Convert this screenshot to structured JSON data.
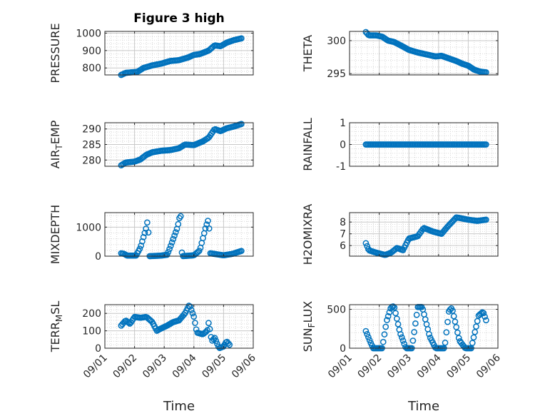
{
  "figure": {
    "title": "Figure 3 high",
    "xlabel": "Time",
    "marker_color": "#0072bd",
    "axis_color": "#262626",
    "grid_color": "#d7d7d7",
    "xticks": [
      "09/01",
      "09/02",
      "09/03",
      "09/04",
      "09/05",
      "09/06"
    ]
  },
  "chart_data": [
    {
      "type": "scatter",
      "ylabel": "PRESSURE",
      "ylabel_sub": "",
      "ylabel_tail": "",
      "xlim": [
        0,
        5
      ],
      "ylim": [
        760,
        1010
      ],
      "yticks": [
        800,
        900,
        1000
      ],
      "keyframes": [
        [
          0.55,
          760
        ],
        [
          0.7,
          772
        ],
        [
          0.9,
          775
        ],
        [
          1.1,
          778
        ],
        [
          1.3,
          800
        ],
        [
          1.6,
          815
        ],
        [
          1.9,
          825
        ],
        [
          2.2,
          840
        ],
        [
          2.5,
          845
        ],
        [
          2.8,
          860
        ],
        [
          3.0,
          875
        ],
        [
          3.2,
          880
        ],
        [
          3.5,
          900
        ],
        [
          3.7,
          930
        ],
        [
          3.9,
          925
        ],
        [
          4.1,
          945
        ],
        [
          4.35,
          960
        ],
        [
          4.6,
          970
        ]
      ]
    },
    {
      "type": "scatter",
      "ylabel": "THETA",
      "ylabel_sub": "",
      "ylabel_tail": "",
      "xlim": [
        0,
        5
      ],
      "ylim": [
        294.8,
        301.4
      ],
      "yticks": [
        295,
        300
      ],
      "keyframes": [
        [
          0.55,
          301.3
        ],
        [
          0.65,
          300.8
        ],
        [
          0.9,
          300.8
        ],
        [
          1.1,
          300.6
        ],
        [
          1.3,
          300.0
        ],
        [
          1.5,
          299.8
        ],
        [
          1.8,
          299.1
        ],
        [
          2.0,
          298.6
        ],
        [
          2.3,
          298.2
        ],
        [
          2.6,
          297.9
        ],
        [
          2.9,
          297.6
        ],
        [
          3.1,
          297.7
        ],
        [
          3.35,
          297.3
        ],
        [
          3.6,
          296.9
        ],
        [
          3.8,
          296.5
        ],
        [
          4.0,
          296.2
        ],
        [
          4.2,
          295.6
        ],
        [
          4.4,
          295.3
        ],
        [
          4.6,
          295.2
        ]
      ]
    },
    {
      "type": "scatter",
      "ylabel": "AIR",
      "ylabel_sub": "T",
      "ylabel_tail": "EMP",
      "xlim": [
        0,
        5
      ],
      "ylim": [
        278,
        292
      ],
      "yticks": [
        280,
        285,
        290
      ],
      "keyframes": [
        [
          0.55,
          278.3
        ],
        [
          0.7,
          279.2
        ],
        [
          1.0,
          279.5
        ],
        [
          1.2,
          280.2
        ],
        [
          1.4,
          281.7
        ],
        [
          1.6,
          282.5
        ],
        [
          1.9,
          283.0
        ],
        [
          2.2,
          283.2
        ],
        [
          2.5,
          283.8
        ],
        [
          2.7,
          285.0
        ],
        [
          3.0,
          284.8
        ],
        [
          3.3,
          286.0
        ],
        [
          3.5,
          287.2
        ],
        [
          3.7,
          290.0
        ],
        [
          3.9,
          289.3
        ],
        [
          4.1,
          290.2
        ],
        [
          4.35,
          290.8
        ],
        [
          4.6,
          291.6
        ]
      ]
    },
    {
      "type": "scatter",
      "ylabel": "RAINFALL",
      "ylabel_sub": "",
      "ylabel_tail": "",
      "xlim": [
        0,
        5
      ],
      "ylim": [
        -1,
        1
      ],
      "yticks": [
        -1,
        0,
        1
      ],
      "keyframes": [
        [
          0.55,
          0
        ],
        [
          4.6,
          0
        ]
      ]
    },
    {
      "type": "scatter",
      "ylabel": "MIXDEPTH",
      "ylabel_sub": "",
      "ylabel_tail": "",
      "xlim": [
        0,
        5
      ],
      "ylim": [
        0,
        1500
      ],
      "yticks": [
        0,
        1000
      ],
      "keyframes": [
        [
          0.55,
          100
        ],
        [
          0.65,
          80
        ],
        [
          0.75,
          20
        ],
        [
          1.05,
          20
        ],
        [
          1.2,
          300
        ],
        [
          1.4,
          1000
        ],
        [
          1.45,
          1300
        ],
        [
          1.5,
          0
        ],
        [
          1.9,
          20
        ],
        [
          2.1,
          50
        ],
        [
          2.2,
          300
        ],
        [
          2.45,
          1000
        ],
        [
          2.55,
          1500
        ],
        [
          2.6,
          0
        ],
        [
          3.0,
          30
        ],
        [
          3.2,
          200
        ],
        [
          3.4,
          1000
        ],
        [
          3.5,
          1300
        ],
        [
          3.55,
          100
        ],
        [
          4.0,
          30
        ],
        [
          4.3,
          80
        ],
        [
          4.6,
          180
        ]
      ]
    },
    {
      "type": "scatter",
      "ylabel": "H2OMIXRA",
      "ylabel_sub": "",
      "ylabel_tail": "",
      "xlim": [
        0,
        5
      ],
      "ylim": [
        5.1,
        8.8
      ],
      "yticks": [
        6,
        7,
        8
      ],
      "keyframes": [
        [
          0.55,
          6.2
        ],
        [
          0.65,
          5.6
        ],
        [
          0.9,
          5.4
        ],
        [
          1.2,
          5.2
        ],
        [
          1.4,
          5.4
        ],
        [
          1.6,
          5.8
        ],
        [
          1.8,
          5.6
        ],
        [
          2.0,
          6.6
        ],
        [
          2.3,
          6.8
        ],
        [
          2.5,
          7.5
        ],
        [
          2.8,
          7.2
        ],
        [
          3.1,
          7.0
        ],
        [
          3.3,
          7.6
        ],
        [
          3.6,
          8.4
        ],
        [
          3.8,
          8.3
        ],
        [
          4.0,
          8.2
        ],
        [
          4.3,
          8.1
        ],
        [
          4.6,
          8.2
        ]
      ]
    },
    {
      "type": "scatter",
      "ylabel": "TERR",
      "ylabel_sub": "M",
      "ylabel_tail": "SL",
      "xlim": [
        0,
        5
      ],
      "ylim": [
        0,
        250
      ],
      "yticks": [
        0,
        100,
        200
      ],
      "keyframes": [
        [
          0.55,
          130
        ],
        [
          0.7,
          160
        ],
        [
          0.85,
          140
        ],
        [
          1.0,
          180
        ],
        [
          1.2,
          175
        ],
        [
          1.4,
          180
        ],
        [
          1.6,
          150
        ],
        [
          1.75,
          100
        ],
        [
          1.85,
          110
        ],
        [
          2.1,
          130
        ],
        [
          2.3,
          150
        ],
        [
          2.5,
          160
        ],
        [
          2.7,
          200
        ],
        [
          2.85,
          250
        ],
        [
          3.0,
          180
        ],
        [
          3.1,
          90
        ],
        [
          3.3,
          80
        ],
        [
          3.45,
          100
        ],
        [
          3.5,
          150
        ],
        [
          3.6,
          40
        ],
        [
          3.7,
          60
        ],
        [
          3.85,
          0
        ],
        [
          4.0,
          10
        ],
        [
          4.1,
          40
        ],
        [
          4.2,
          20
        ]
      ]
    },
    {
      "type": "scatter",
      "ylabel": "SUN",
      "ylabel_sub": "F",
      "ylabel_tail": "LUX",
      "xlim": [
        0,
        5
      ],
      "ylim": [
        0,
        560
      ],
      "yticks": [
        0,
        500
      ],
      "keyframes": [
        [
          0.55,
          220
        ],
        [
          0.7,
          80
        ],
        [
          0.8,
          0
        ],
        [
          1.1,
          0
        ],
        [
          1.25,
          350
        ],
        [
          1.4,
          530
        ],
        [
          1.5,
          540
        ],
        [
          1.7,
          200
        ],
        [
          1.9,
          0
        ],
        [
          2.1,
          0
        ],
        [
          2.3,
          530
        ],
        [
          2.45,
          530
        ],
        [
          2.7,
          150
        ],
        [
          2.9,
          0
        ],
        [
          3.2,
          0
        ],
        [
          3.35,
          480
        ],
        [
          3.45,
          520
        ],
        [
          3.7,
          100
        ],
        [
          3.9,
          0
        ],
        [
          4.1,
          0
        ],
        [
          4.35,
          420
        ],
        [
          4.5,
          470
        ],
        [
          4.6,
          360
        ]
      ]
    }
  ]
}
